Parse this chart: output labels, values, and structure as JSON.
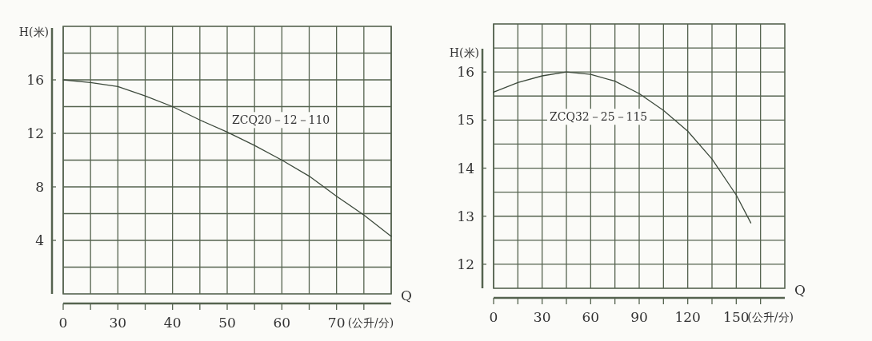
{
  "chart_data": [
    {
      "type": "line",
      "xlabel": "Q",
      "ylabel": "H(米)",
      "annotations": [
        "(公升/分)"
      ],
      "categories": [
        "0",
        null,
        "30",
        null,
        "40",
        null,
        "50",
        null,
        "60",
        null,
        "70",
        null,
        null
      ],
      "series": [
        {
          "name": "ZCQ20－12－110",
          "color": "#3d4a3c",
          "values": [
            16,
            15.8,
            15.5,
            14.8,
            14.0,
            13.0,
            12.1,
            11.1,
            10.0,
            8.8,
            7.3,
            5.9,
            4.3
          ]
        }
      ],
      "ylim": [
        0,
        20
      ],
      "yticks": [
        {
          "value": 2,
          "label": null
        },
        4,
        {
          "value": 6,
          "label": null
        },
        8,
        {
          "value": 10,
          "label": null
        },
        12,
        {
          "value": 14,
          "label": null
        },
        16,
        {
          "value": 18,
          "label": null
        }
      ],
      "grid": true,
      "legend": false
    },
    {
      "type": "line",
      "xlabel": "Q",
      "ylabel": "H(米)",
      "annotations": [
        "(公升/分)"
      ],
      "series": [
        {
          "name": "ZCQ32－25－115",
          "color": "#3d4a3c",
          "x": [
            0,
            15,
            30,
            45,
            60,
            75,
            90,
            105,
            120,
            135,
            150,
            159
          ],
          "values": [
            15.58,
            15.78,
            15.92,
            16.0,
            15.95,
            15.81,
            15.55,
            15.2,
            14.77,
            14.19,
            13.44,
            12.86
          ]
        }
      ],
      "xlim": [
        0,
        180
      ],
      "xticks": [
        0,
        {
          "value": 15,
          "label": null
        },
        30,
        {
          "value": 45,
          "label": null
        },
        60,
        {
          "value": 75,
          "label": null
        },
        90,
        {
          "value": 105,
          "label": null
        },
        120,
        {
          "value": 135,
          "label": null
        },
        150,
        {
          "value": 165,
          "label": null
        }
      ],
      "ylim": [
        11.5,
        17
      ],
      "yticks": [
        12,
        {
          "value": 12.5,
          "label": null
        },
        13,
        {
          "value": 13.5,
          "label": null
        },
        14,
        {
          "value": 14.5,
          "label": null
        },
        15,
        {
          "value": 15.5,
          "label": null
        },
        16,
        {
          "value": 16.5,
          "label": null
        }
      ],
      "grid": true,
      "legend": false
    }
  ]
}
